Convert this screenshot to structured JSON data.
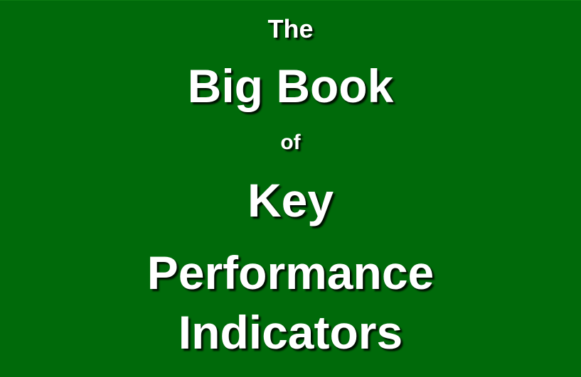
{
  "cover": {
    "background_color": "#006a0a",
    "text_color": "#ffffff",
    "lines": [
      "The",
      "Big Book",
      "of",
      "Key",
      "Performance",
      "Indicators"
    ]
  }
}
